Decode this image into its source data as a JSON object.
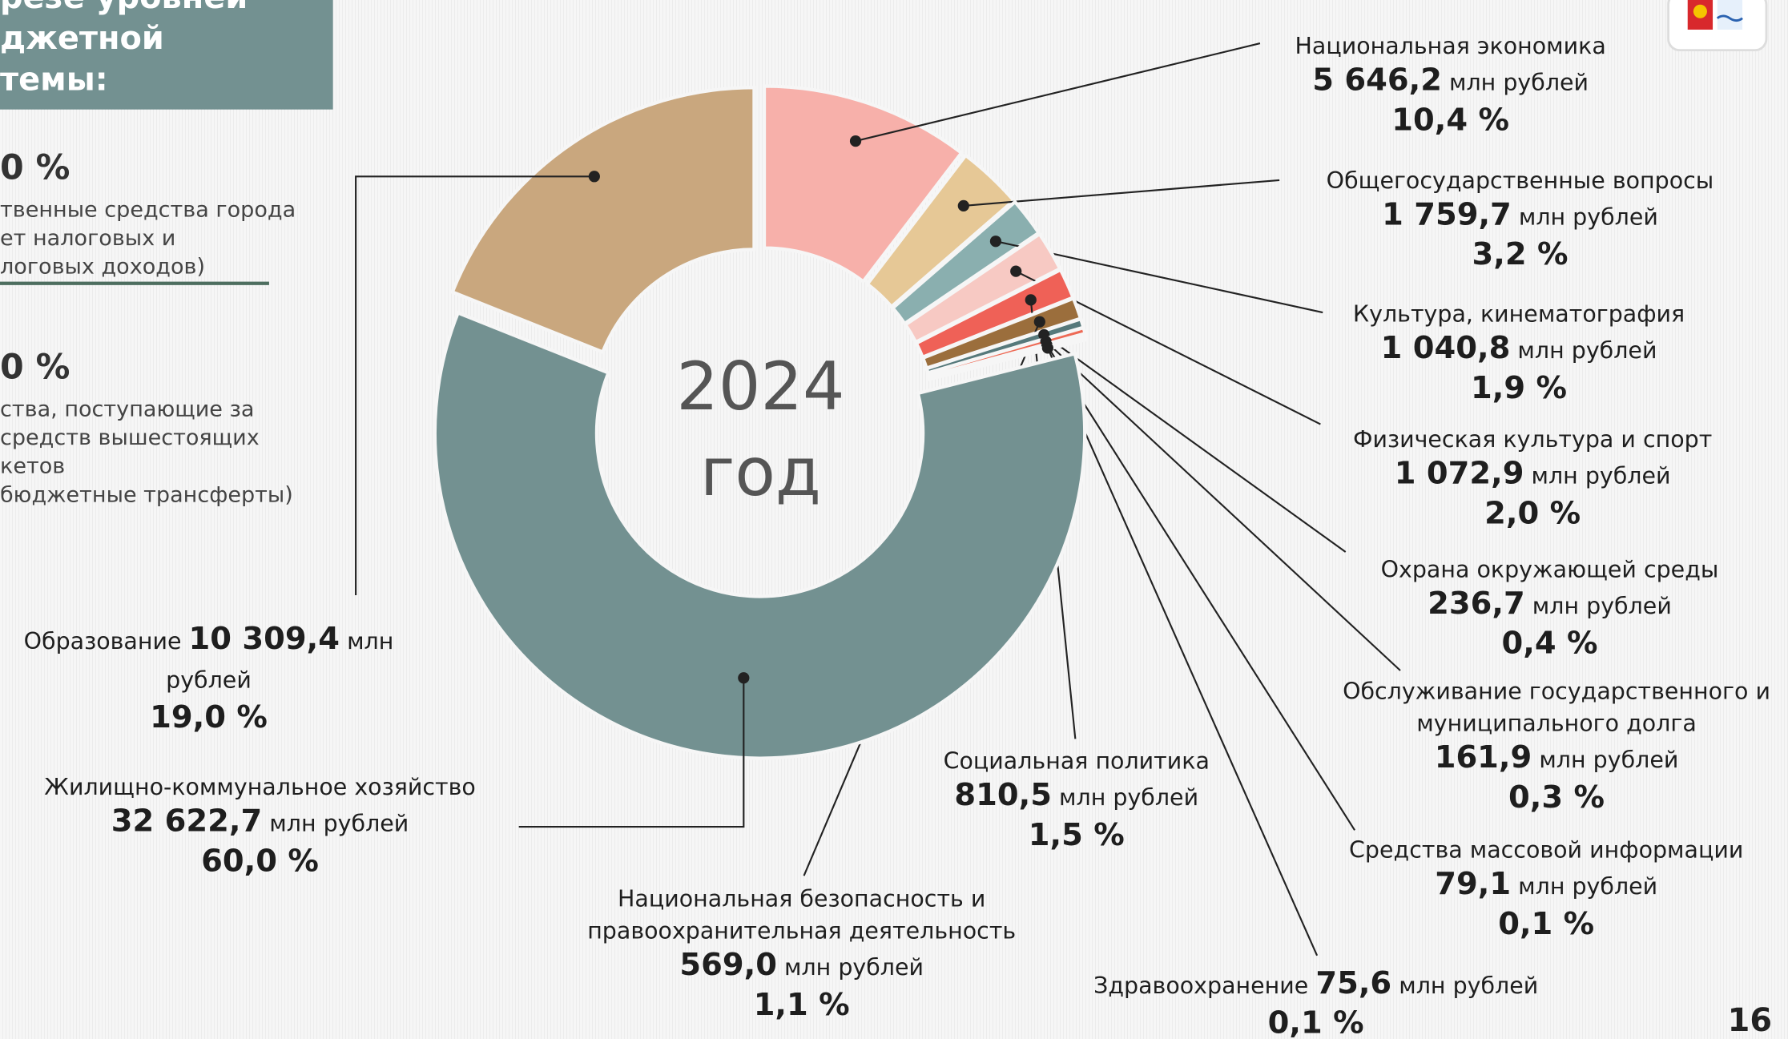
{
  "header": {
    "lines": [
      "резе уровней",
      "джетной",
      "темы:"
    ]
  },
  "left_panel": [
    {
      "percent": "0 %",
      "lines": [
        "твенные средства города",
        "ет налоговых и",
        "логовых доходов)"
      ]
    },
    {
      "percent": "0 %",
      "lines": [
        "ства, поступающие за",
        "средств вышестоящих",
        "кетов",
        "бюджетные трансферты)"
      ]
    }
  ],
  "page_number": "16",
  "chart_data": {
    "type": "donut",
    "center_lines": [
      "2024",
      "год"
    ],
    "unit": "млн рублей",
    "categories": [
      "Национальная экономика",
      "Общегосударственные вопросы",
      "Культура, кинематография",
      "Физическая культура и спорт",
      "Социальная политика",
      "Национальная безопасность и правоохранительная деятельность",
      "Охрана окружающей среды",
      "Обслуживание государственного и муниципального долга",
      "Средства массовой информации",
      "Здравоохранение",
      "Жилищно-коммунальное хозяйство",
      "Образование"
    ],
    "values": [
      5646.2,
      1759.7,
      1040.8,
      1072.9,
      810.5,
      569.0,
      236.7,
      161.9,
      79.1,
      75.6,
      32622.7,
      10309.4
    ],
    "value_labels": [
      "5 646,2",
      "1 759,7",
      "1 040,8",
      "1 072,9",
      "810,5",
      "569,0",
      "236,7",
      "161,9",
      "79,1",
      "75,6",
      "32 622,7",
      "10 309,4"
    ],
    "shares": [
      10.4,
      3.2,
      1.9,
      2.0,
      1.5,
      1.1,
      0.4,
      0.3,
      0.1,
      0.1,
      60.0,
      19.0
    ],
    "share_labels": [
      "10,4 %",
      "3,2 %",
      "1,9 %",
      "2,0 %",
      "1,5 %",
      "1,1 %",
      "0,4 %",
      "0,3 %",
      "0,1 %",
      "0,1 %",
      "60,0 %",
      "19,0 %"
    ],
    "colors": [
      "#f7b0aa",
      "#e6c896",
      "#8aafaf",
      "#f7c9c3",
      "#ef6157",
      "#9b6e3c",
      "#56797b",
      "#ee6a55",
      "#d8a062",
      "#6e4f2f",
      "#739191",
      "#c9a77e"
    ]
  }
}
